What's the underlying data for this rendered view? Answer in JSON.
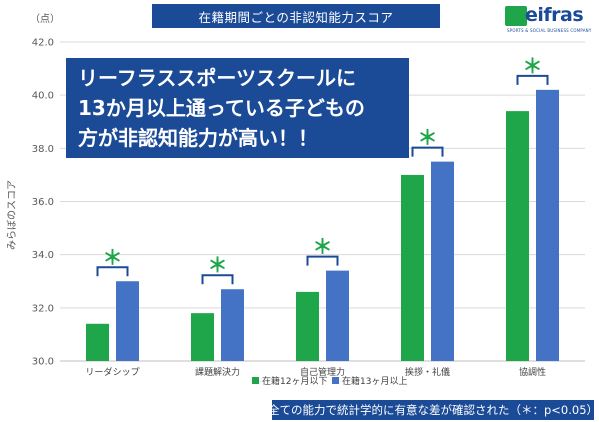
{
  "header": {
    "title": "在籍期間ごとの非認知能力スコア",
    "logo_text": "eifras",
    "logo_subtitle": "SPORTS & SOCIAL BUSINESS COMPANY",
    "brand_colors": {
      "navy": "#1b4a97",
      "green": "#1fa64a"
    }
  },
  "callout": {
    "lines": [
      "リーフラススポーツスクールに",
      "13か月以上通っている子どもの",
      "方が非認知能力が高い！！"
    ]
  },
  "footnote": "全ての能力で統計学的に有意な差が確認された（＊：p<0.05）",
  "chart_data": {
    "type": "bar",
    "unit_label": "（点）",
    "ylabel": "みらぼのスコア",
    "ylim": [
      30.0,
      42.0
    ],
    "yticks": [
      "30.0",
      "32.0",
      "34.0",
      "36.0",
      "38.0",
      "40.0",
      "42.0"
    ],
    "categories": [
      "リーダシップ",
      "課題解決力",
      "自己管理力",
      "挨拶・礼儀",
      "協調性"
    ],
    "series": [
      {
        "name": "在籍12ヶ月以下",
        "color": "#1fa64a",
        "values": [
          31.4,
          31.8,
          32.6,
          37.0,
          39.4
        ]
      },
      {
        "name": "在籍13ヶ月以上",
        "color": "#4472c4",
        "values": [
          33.0,
          32.7,
          33.4,
          37.5,
          40.2
        ]
      }
    ],
    "significance_marker": "＊",
    "significance_color": "#1fa64a",
    "bracket_color": "#1b4a97",
    "grid": true,
    "legend_position": "bottom"
  }
}
